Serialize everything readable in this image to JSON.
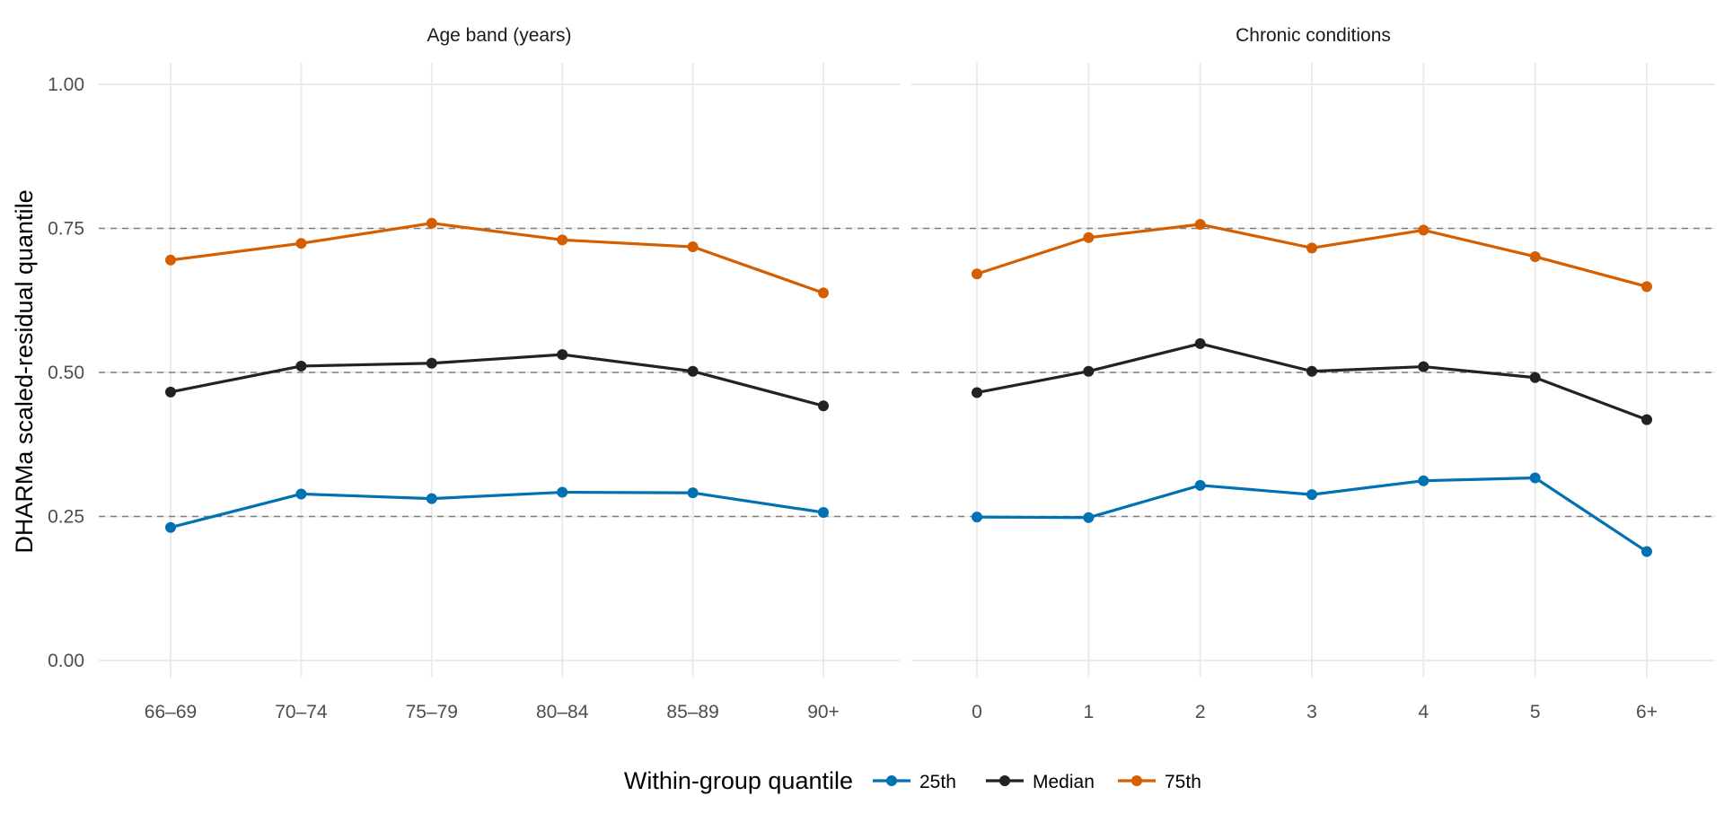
{
  "chart_data": {
    "type": "line",
    "ylabel": "DHARMa scaled-residual quantile",
    "ylim": [
      0,
      1
    ],
    "y_ticks": [
      "0.00",
      "0.25",
      "0.50",
      "0.75",
      "1.00"
    ],
    "reference_lines": [
      0.25,
      0.5,
      0.75
    ],
    "grid": true,
    "colors": {
      "25th": "#0072B2",
      "Median": "#222222",
      "75th": "#D55E00",
      "reference": "#7f7f7f"
    },
    "legend": {
      "title": "Within-group quantile",
      "position": "bottom",
      "entries": [
        "25th",
        "Median",
        "75th"
      ]
    },
    "panels": [
      {
        "strip": "Age band (years)",
        "categories": [
          "66–69",
          "70–74",
          "75–79",
          "80–84",
          "85–89",
          "90+"
        ],
        "series": [
          {
            "name": "25th",
            "values": [
              0.231,
              0.289,
              0.281,
              0.292,
              0.291,
              0.257
            ]
          },
          {
            "name": "Median",
            "values": [
              0.466,
              0.511,
              0.516,
              0.531,
              0.502,
              0.442
            ]
          },
          {
            "name": "75th",
            "values": [
              0.695,
              0.724,
              0.759,
              0.73,
              0.718,
              0.638
            ]
          }
        ]
      },
      {
        "strip": "Chronic conditions",
        "categories": [
          "0",
          "1",
          "2",
          "3",
          "4",
          "5",
          "6+"
        ],
        "series": [
          {
            "name": "25th",
            "values": [
              0.249,
              0.248,
              0.304,
              0.288,
              0.312,
              0.317,
              0.189
            ]
          },
          {
            "name": "Median",
            "values": [
              0.465,
              0.502,
              0.55,
              0.502,
              0.51,
              0.491,
              0.418
            ]
          },
          {
            "name": "75th",
            "values": [
              0.671,
              0.734,
              0.757,
              0.716,
              0.747,
              0.701,
              0.649
            ]
          }
        ]
      }
    ]
  }
}
